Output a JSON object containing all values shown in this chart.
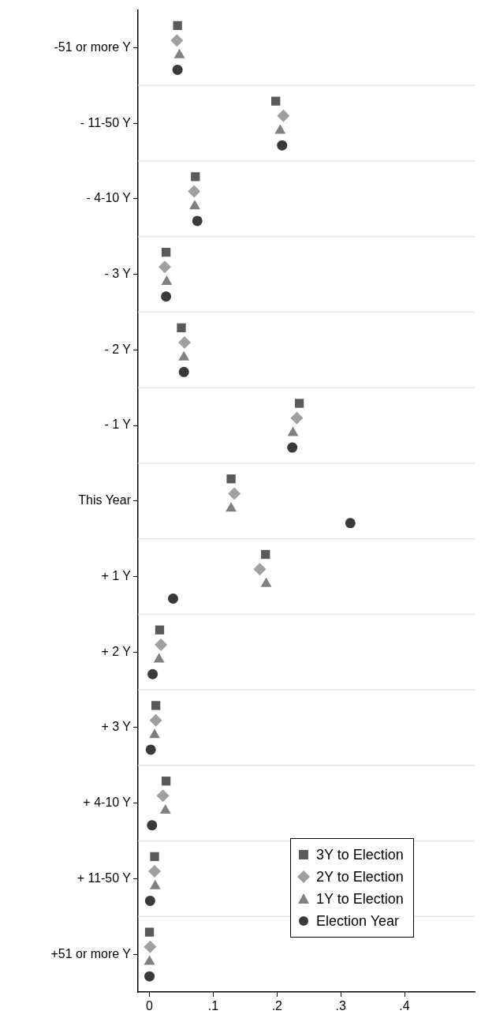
{
  "chart_data": {
    "type": "scatter",
    "orientation": "horizontal",
    "categories": [
      "-51 or more Y",
      "- 11-50 Y",
      "- 4-10 Y",
      "- 3 Y",
      "- 2 Y",
      "- 1 Y",
      "This Year",
      "+ 1 Y",
      "+ 2 Y",
      "+ 3 Y",
      "+ 4-10 Y",
      "+ 11-50 Y",
      "+51 or more Y"
    ],
    "series": [
      {
        "name": "3Y to Election",
        "color": "#5a5a5a",
        "marker": "square",
        "values": [
          0.044,
          0.198,
          0.072,
          0.026,
          0.05,
          0.235,
          0.128,
          0.182,
          0.016,
          0.01,
          0.026,
          0.008,
          0.0
        ]
      },
      {
        "name": "2Y to Election",
        "color": "#a0a0a0",
        "marker": "diamond",
        "values": [
          0.043,
          0.21,
          0.07,
          0.024,
          0.055,
          0.231,
          0.133,
          0.173,
          0.018,
          0.01,
          0.021,
          0.008,
          0.001
        ]
      },
      {
        "name": "1Y to Election",
        "color": "#808080",
        "marker": "triangle",
        "values": [
          0.047,
          0.205,
          0.071,
          0.027,
          0.054,
          0.225,
          0.128,
          0.183,
          0.015,
          0.008,
          0.025,
          0.009,
          0.0
        ]
      },
      {
        "name": "Election Year",
        "color": "#3a3a3a",
        "marker": "circle",
        "values": [
          0.044,
          0.208,
          0.075,
          0.026,
          0.054,
          0.224,
          0.315,
          0.037,
          0.005,
          0.002,
          0.004,
          0.001,
          0.0
        ]
      }
    ],
    "xlim": [
      -0.018,
      0.51
    ],
    "xticks": [
      0,
      {
        "value": 0.1,
        "label": ".1"
      },
      {
        "value": 0.2,
        "label": ".2"
      },
      {
        "value": 0.3,
        "label": ".3"
      },
      {
        "value": 0.4,
        "label": ".4"
      }
    ],
    "grid": "y",
    "legend": "bottom right"
  }
}
